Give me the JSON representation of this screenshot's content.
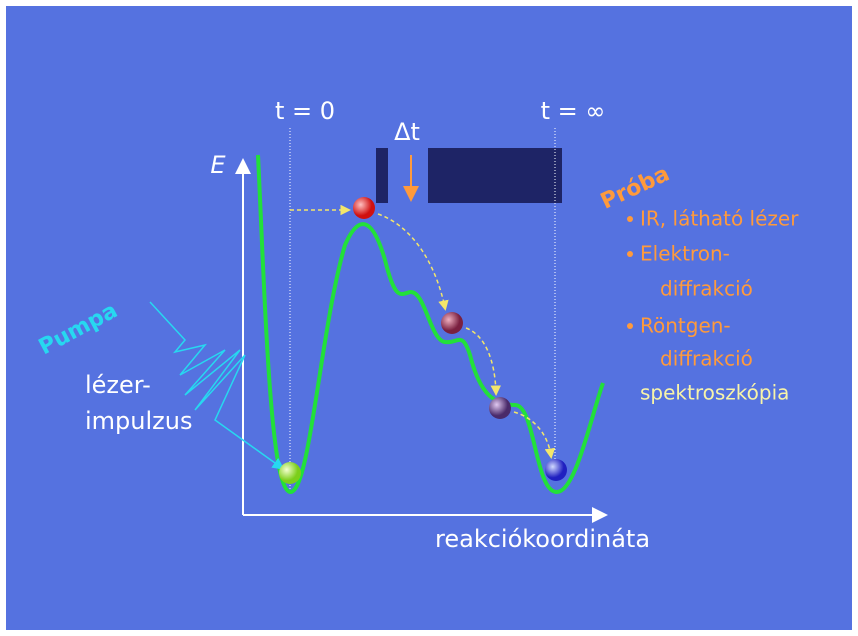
{
  "labels": {
    "time_start": "t = 0",
    "time_end": "t = ∞",
    "delta_t": "Δt",
    "energy_axis": "E",
    "reaction_axis": "reakciókoordináta"
  },
  "pump": {
    "title": "Pumpa",
    "lines": [
      "lézer-",
      "impulzus"
    ]
  },
  "probe": {
    "title": "Próba",
    "items": [
      [
        "IR, látható lézer"
      ],
      [
        "Elektron-",
        "diffrakció"
      ],
      [
        "Röntgen-",
        "diffrakció"
      ]
    ],
    "footer": "spektroszkópia"
  }
}
